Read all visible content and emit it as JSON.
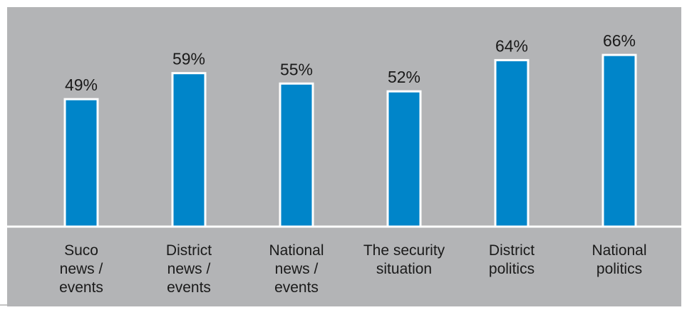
{
  "colors": {
    "panel_background": "#b3b4b6",
    "bar_fill": "#0085c9",
    "bar_outline": "#ffffff",
    "axis_line": "#ffffff",
    "text": "#1a1a1a"
  },
  "chart_data": {
    "type": "bar",
    "title": "",
    "xlabel": "",
    "ylabel": "",
    "ylim": [
      0,
      70
    ],
    "grid": false,
    "legend": "none",
    "categories": [
      [
        "Suco",
        "news /",
        "events"
      ],
      [
        "District",
        "news /",
        "events"
      ],
      [
        "National",
        "news /",
        "events"
      ],
      [
        "The security",
        "situation"
      ],
      [
        "District",
        "politics"
      ],
      [
        "National",
        "politics"
      ]
    ],
    "values": [
      49,
      59,
      55,
      52,
      64,
      66
    ],
    "data_labels": [
      "49%",
      "59%",
      "55%",
      "52%",
      "64%",
      "66%"
    ]
  }
}
